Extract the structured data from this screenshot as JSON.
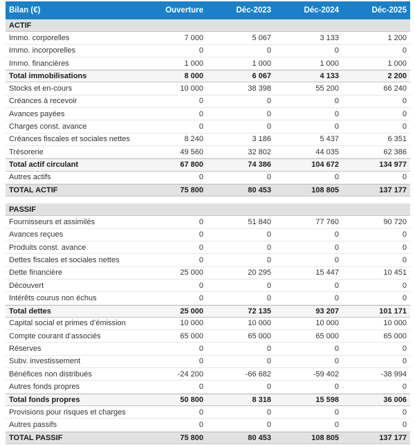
{
  "colors": {
    "header_bg": "#1a80c8",
    "header_text": "#ffffff",
    "section_bg": "#e1e1e1",
    "subtotal_bg": "#f5f5f5",
    "total_bg": "#e2e2e2"
  },
  "table": {
    "title": "Bilan (€)",
    "columns": [
      "Ouverture",
      "Déc-2023",
      "Déc-2024",
      "Déc-2025"
    ],
    "sections": [
      {
        "name": "ACTIF",
        "rows": [
          {
            "label": "Immo. corporelles",
            "type": "normal",
            "values": [
              "7 000",
              "5 067",
              "3 133",
              "1 200"
            ]
          },
          {
            "label": "Immo. incorporelles",
            "type": "normal",
            "values": [
              "0",
              "0",
              "0",
              "0"
            ]
          },
          {
            "label": "Immo. financières",
            "type": "normal",
            "values": [
              "1 000",
              "1 000",
              "1 000",
              "1 000"
            ]
          },
          {
            "label": "Total immobilisations",
            "type": "subtotal",
            "values": [
              "8 000",
              "6 067",
              "4 133",
              "2 200"
            ]
          },
          {
            "label": "Stocks et en-cours",
            "type": "normal",
            "values": [
              "10 000",
              "38 398",
              "55 200",
              "66 240"
            ]
          },
          {
            "label": "Créances à recevoir",
            "type": "normal",
            "values": [
              "0",
              "0",
              "0",
              "0"
            ]
          },
          {
            "label": "Avances payées",
            "type": "normal",
            "values": [
              "0",
              "0",
              "0",
              "0"
            ]
          },
          {
            "label": "Charges const. avance",
            "type": "normal",
            "values": [
              "0",
              "0",
              "0",
              "0"
            ]
          },
          {
            "label": "Créances fiscales et sociales nettes",
            "type": "normal",
            "values": [
              "8 240",
              "3 186",
              "5 437",
              "6 351"
            ]
          },
          {
            "label": "Trésorerie",
            "type": "normal",
            "values": [
              "49 560",
              "32 802",
              "44 035",
              "62 386"
            ]
          },
          {
            "label": "Total actif circulant",
            "type": "subtotal",
            "values": [
              "67 800",
              "74 386",
              "104 672",
              "134 977"
            ]
          },
          {
            "label": "Autres actifs",
            "type": "normal",
            "values": [
              "0",
              "0",
              "0",
              "0"
            ]
          },
          {
            "label": "TOTAL ACTIF",
            "type": "total",
            "values": [
              "75 800",
              "80 453",
              "108 805",
              "137 177"
            ]
          }
        ]
      },
      {
        "name": "PASSIF",
        "rows": [
          {
            "label": "Fournisseurs et assimilés",
            "type": "normal",
            "values": [
              "0",
              "51 840",
              "77 760",
              "90 720"
            ]
          },
          {
            "label": "Avances reçues",
            "type": "normal",
            "values": [
              "0",
              "0",
              "0",
              "0"
            ]
          },
          {
            "label": "Produits const. avance",
            "type": "normal",
            "values": [
              "0",
              "0",
              "0",
              "0"
            ]
          },
          {
            "label": "Dettes fiscales et sociales nettes",
            "type": "normal",
            "values": [
              "0",
              "0",
              "0",
              "0"
            ]
          },
          {
            "label": "Dette financière",
            "type": "normal",
            "values": [
              "25 000",
              "20 295",
              "15 447",
              "10 451"
            ]
          },
          {
            "label": "Découvert",
            "type": "normal",
            "values": [
              "0",
              "0",
              "0",
              "0"
            ]
          },
          {
            "label": "Intérêts courus non échus",
            "type": "normal",
            "values": [
              "0",
              "0",
              "0",
              "0"
            ]
          },
          {
            "label": "Total dettes",
            "type": "subtotal",
            "values": [
              "25 000",
              "72 135",
              "93 207",
              "101 171"
            ]
          },
          {
            "label": "Capital social et primes d’émission",
            "type": "normal",
            "values": [
              "10 000",
              "10 000",
              "10 000",
              "10 000"
            ]
          },
          {
            "label": "Compte courant d’associés",
            "type": "normal",
            "values": [
              "65 000",
              "65 000",
              "65 000",
              "65 000"
            ]
          },
          {
            "label": "Réserves",
            "type": "normal",
            "values": [
              "0",
              "0",
              "0",
              "0"
            ]
          },
          {
            "label": "Subv. investissement",
            "type": "normal",
            "values": [
              "0",
              "0",
              "0",
              "0"
            ]
          },
          {
            "label": "Bénéfices non distribués",
            "type": "normal",
            "values": [
              "-24 200",
              "-66 682",
              "-59 402",
              "-38 994"
            ]
          },
          {
            "label": "Autres fonds propres",
            "type": "normal",
            "values": [
              "0",
              "0",
              "0",
              "0"
            ]
          },
          {
            "label": "Total fonds propres",
            "type": "subtotal",
            "values": [
              "50 800",
              "8 318",
              "15 598",
              "36 006"
            ]
          },
          {
            "label": "Provisions pour risques et charges",
            "type": "normal",
            "values": [
              "0",
              "0",
              "0",
              "0"
            ]
          },
          {
            "label": "Autres passifs",
            "type": "normal",
            "values": [
              "0",
              "0",
              "0",
              "0"
            ]
          },
          {
            "label": "TOTAL PASSIF",
            "type": "total",
            "values": [
              "75 800",
              "80 453",
              "108 805",
              "137 177"
            ]
          }
        ]
      }
    ]
  }
}
